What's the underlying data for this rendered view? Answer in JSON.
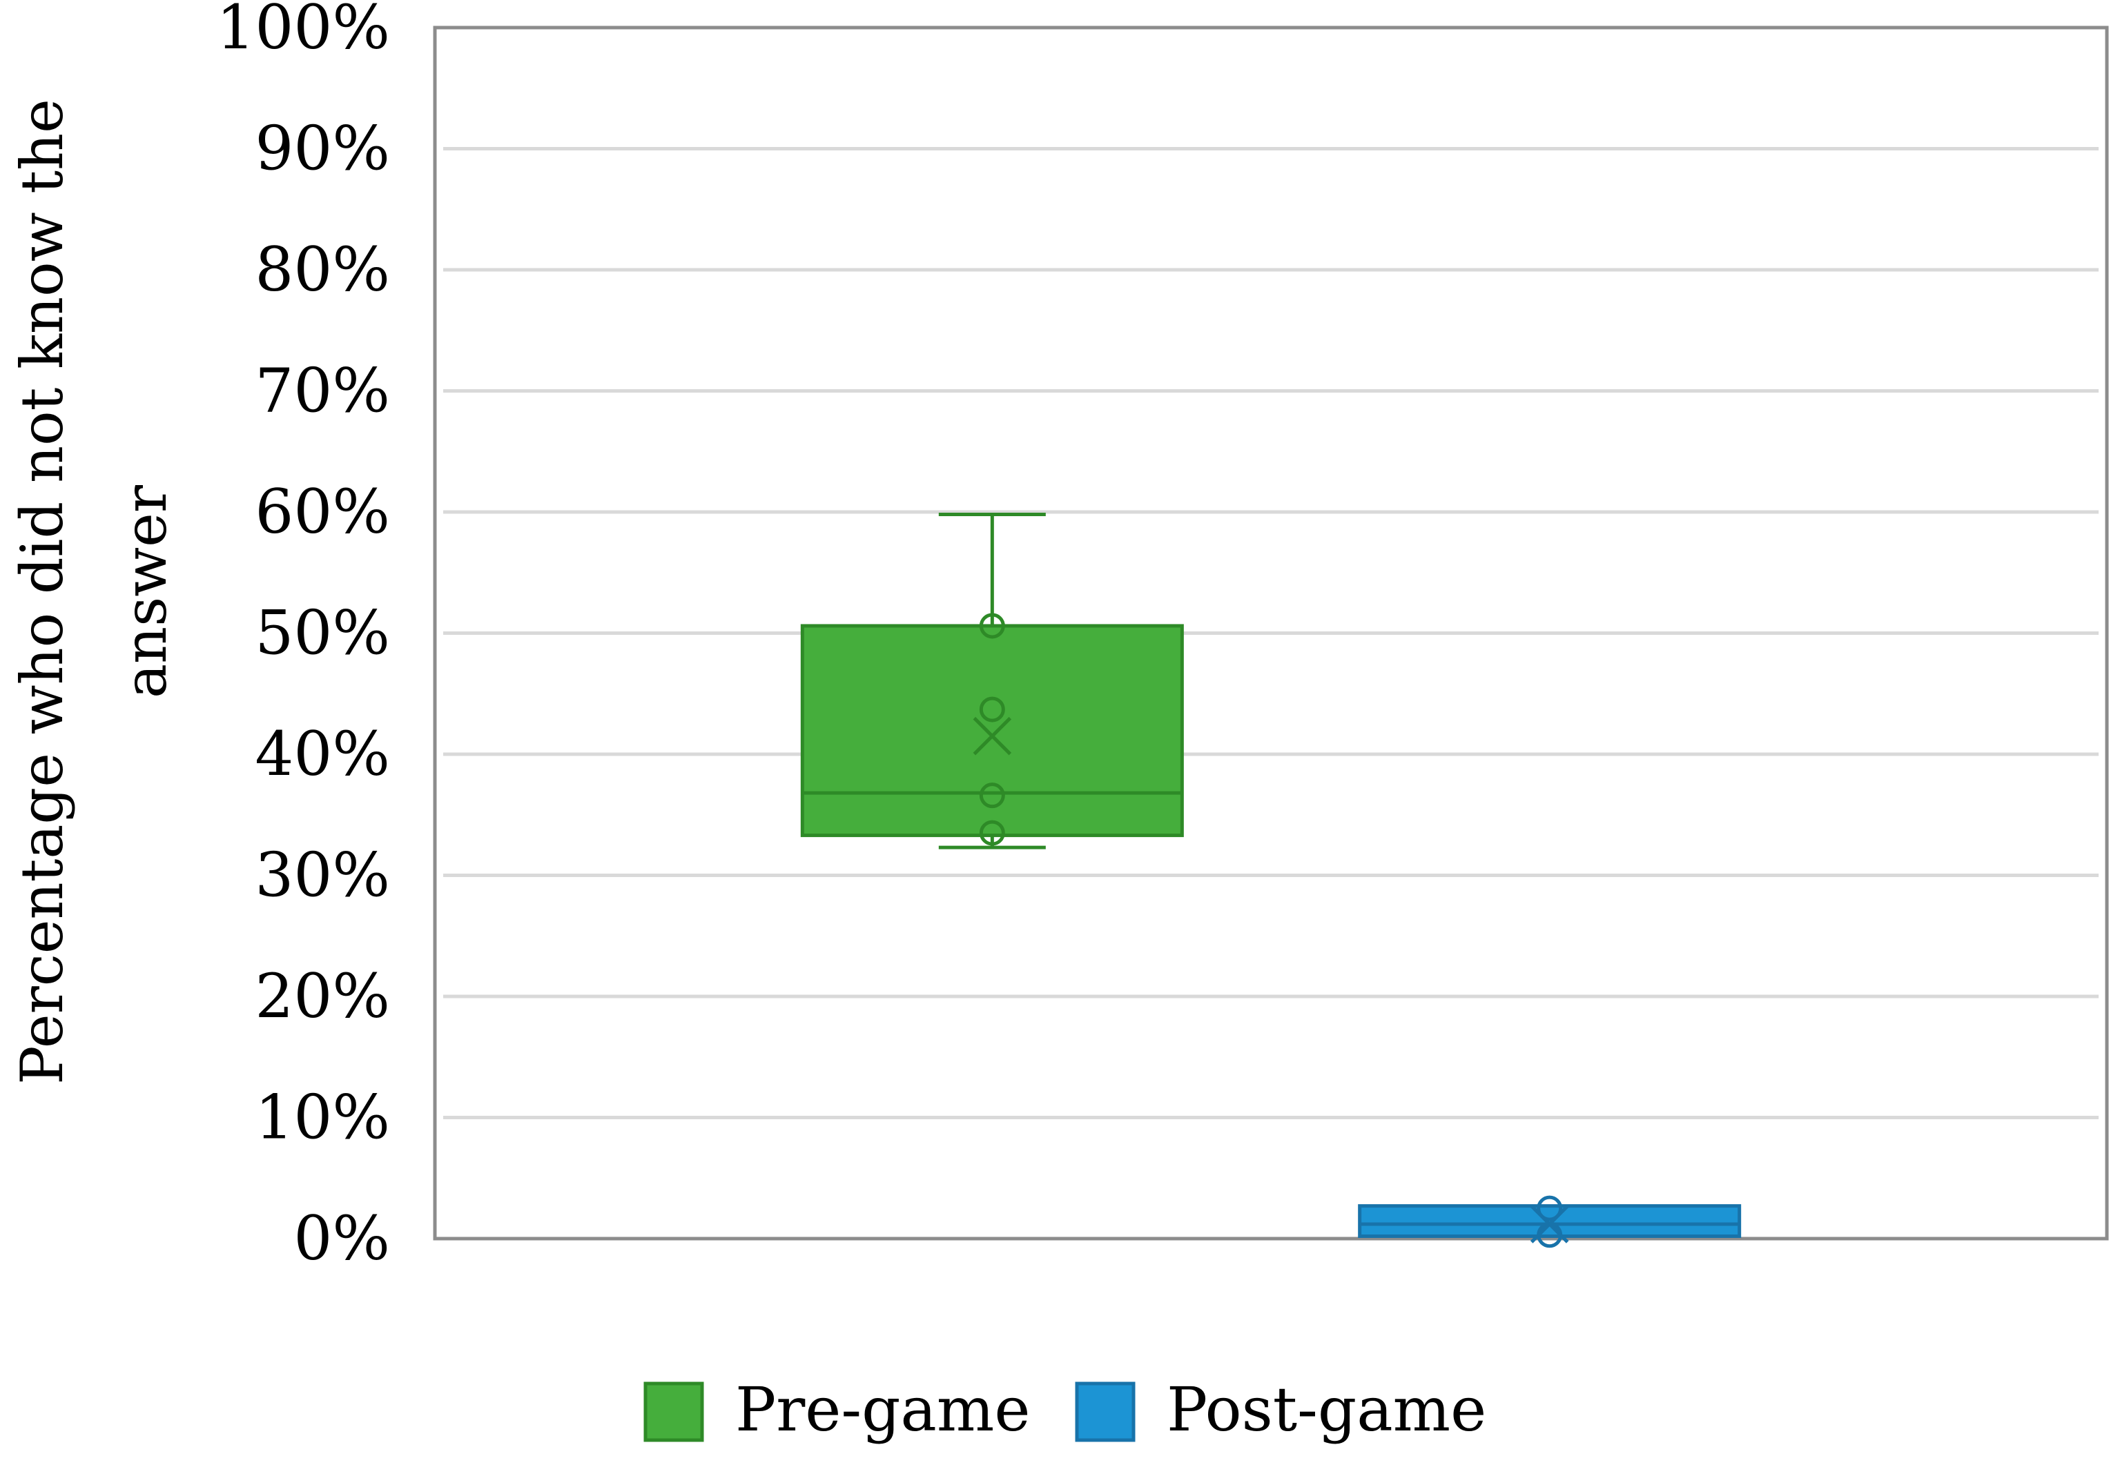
{
  "chart_data": {
    "type": "box",
    "ylabel": "Percentage who did not know the answer",
    "ylim": [
      0,
      100
    ],
    "y_ticks": [
      "0%",
      "10%",
      "20%",
      "30%",
      "40%",
      "50%",
      "60%",
      "70%",
      "80%",
      "90%",
      "100%"
    ],
    "grid": true,
    "legend_position": "bottom",
    "series": [
      {
        "name": "Pre-game",
        "color": "#45AE3C",
        "edge_color": "#2E8A27",
        "whisker_low": 32.3,
        "q1": 33.3,
        "median": 36.8,
        "mean": 41.5,
        "q3": 50.6,
        "whisker_high": 59.8,
        "points": [
          33.5,
          36.6,
          43.7,
          50.6
        ]
      },
      {
        "name": "Post-game",
        "color": "#1C94D4",
        "edge_color": "#1873AA",
        "whisker_low": 0.2,
        "q1": 0.2,
        "median": 1.2,
        "mean": 1.2,
        "q3": 2.7,
        "whisker_high": 2.7,
        "points": [
          0.3,
          2.5
        ]
      }
    ]
  }
}
